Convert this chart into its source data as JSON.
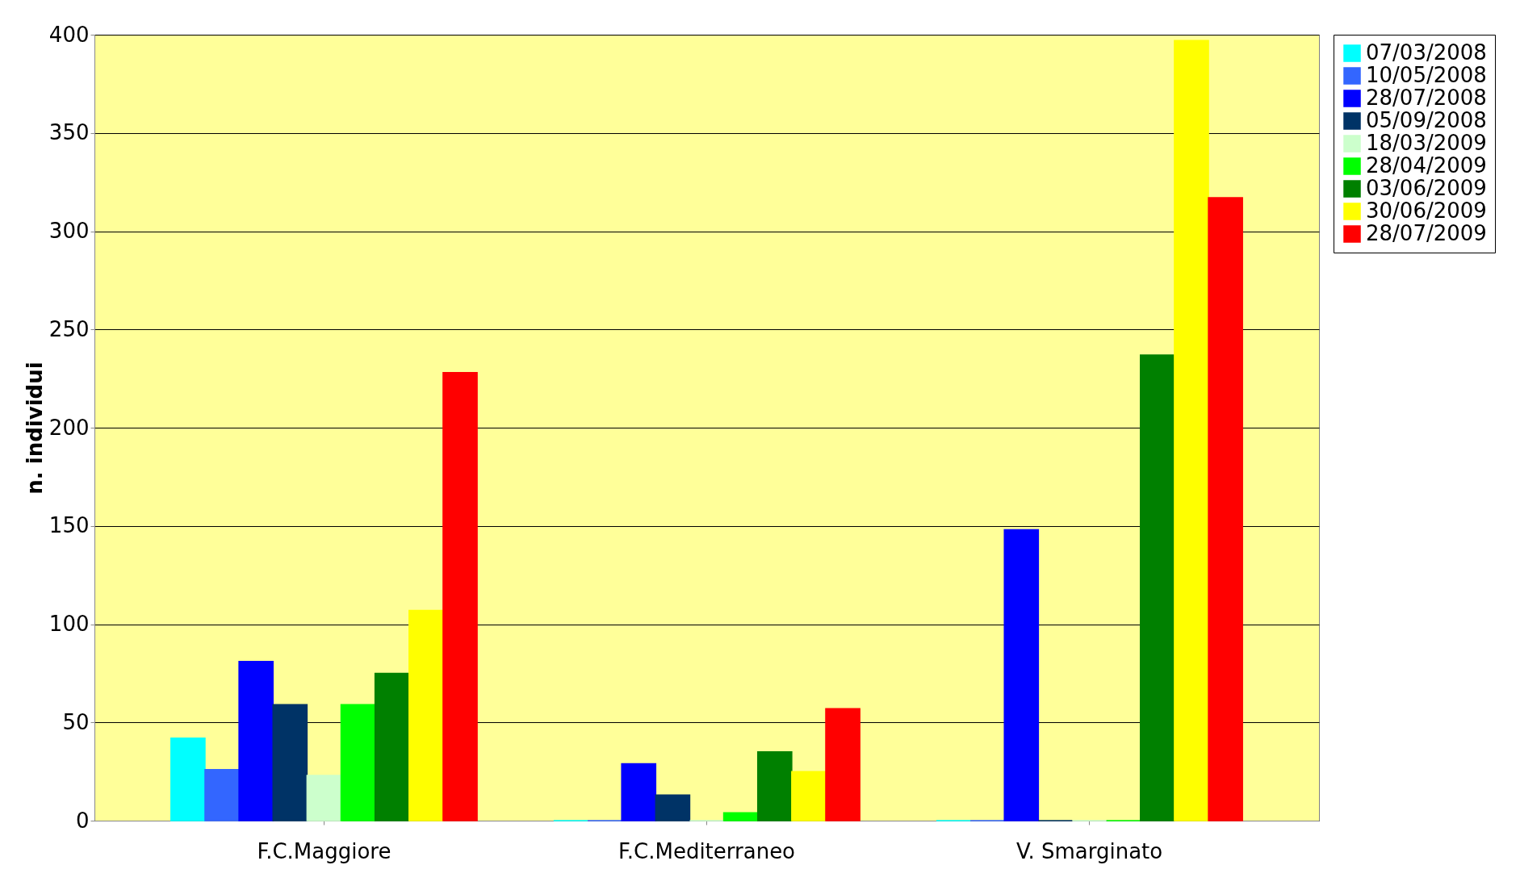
{
  "chart_data": {
    "type": "bar",
    "ylabel": "n. individui",
    "categories": [
      "F.C.Maggiore",
      "F.C.Mediterraneo",
      "V. Smarginato"
    ],
    "series": [
      {
        "name": "07/03/2008",
        "color": "#00ffff",
        "values": [
          42,
          0,
          0
        ]
      },
      {
        "name": "10/05/2008",
        "color": "#3366ff",
        "values": [
          26,
          0,
          0
        ]
      },
      {
        "name": "28/07/2008",
        "color": "#0000ff",
        "values": [
          81,
          29,
          148
        ]
      },
      {
        "name": "05/09/2008",
        "color": "#003366",
        "values": [
          59,
          13,
          0
        ]
      },
      {
        "name": "18/03/2009",
        "color": "#ccffcc",
        "values": [
          23,
          0,
          0
        ]
      },
      {
        "name": "28/04/2009",
        "color": "#00ff00",
        "values": [
          59,
          4,
          0
        ]
      },
      {
        "name": "03/06/2009",
        "color": "#008000",
        "values": [
          75,
          35,
          237
        ]
      },
      {
        "name": "30/06/2009",
        "color": "#ffff00",
        "values": [
          107,
          25,
          397
        ]
      },
      {
        "name": "28/07/2009",
        "color": "#ff0000",
        "values": [
          228,
          57,
          317
        ]
      }
    ],
    "ylim": [
      0,
      400
    ],
    "yticks": [
      0,
      50,
      100,
      150,
      200,
      250,
      300,
      350,
      400
    ],
    "grid": "y",
    "legend": "right"
  }
}
